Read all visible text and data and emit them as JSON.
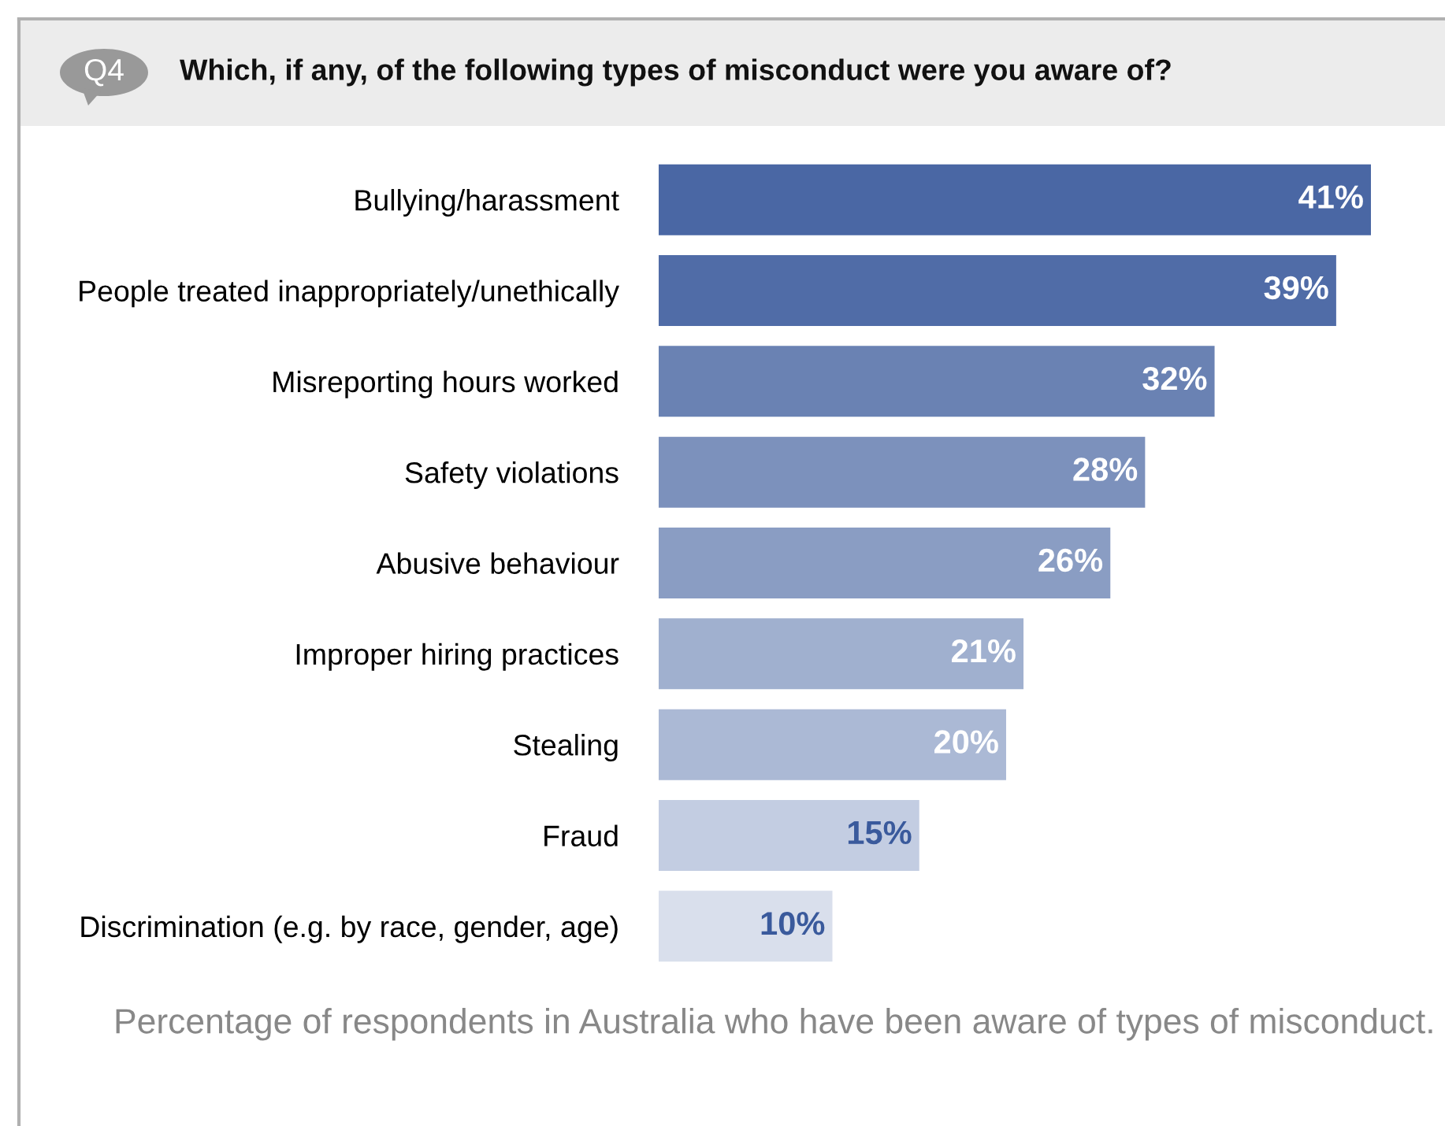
{
  "chart_data": {
    "type": "bar",
    "orientation": "horizontal",
    "title": "Which, if any, of the following types of misconduct were you aware of?",
    "categories": [
      "Bullying/harassment",
      "People treated inappropriately/unethically",
      "Misreporting hours worked",
      "Safety violations",
      "Abusive behaviour",
      "Improper hiring practices",
      "Stealing",
      "Fraud",
      "Discrimination (e.g. by race, gender, age)"
    ],
    "values": [
      41,
      39,
      32,
      28,
      26,
      21,
      20,
      15,
      10
    ],
    "value_labels": [
      "41%",
      "39%",
      "32%",
      "28%",
      "26%",
      "21%",
      "20%",
      "15%",
      "10%"
    ],
    "colors": [
      "#4a67a4",
      "#506ca7",
      "#6a82b3",
      "#7c91bc",
      "#8a9dc3",
      "#a0b0cf",
      "#abb9d5",
      "#c3cde2",
      "#d9dfec"
    ],
    "annotations": [
      "Q4",
      "Percentage of respondents in Australia who have been aware of types of misconduct."
    ]
  }
}
